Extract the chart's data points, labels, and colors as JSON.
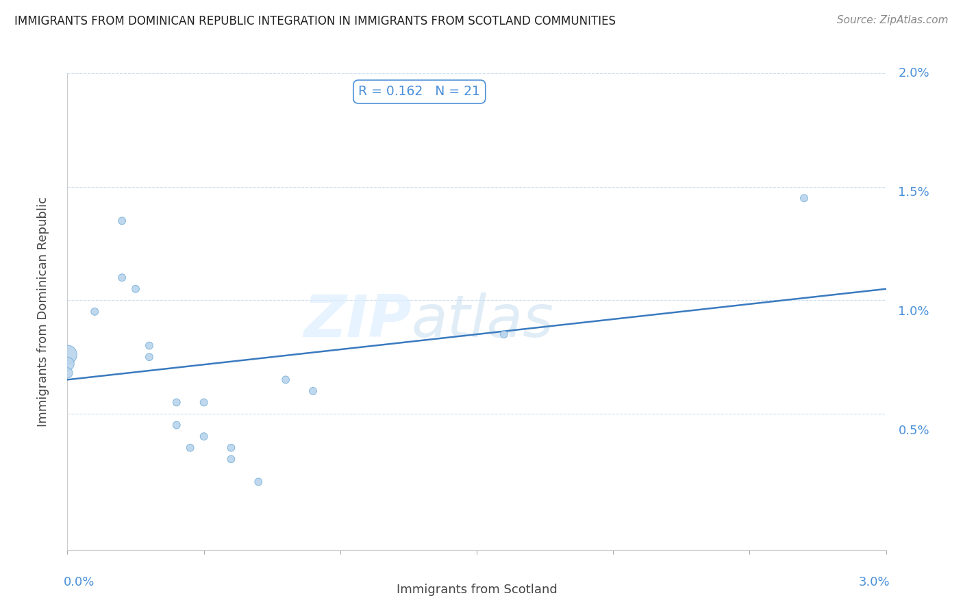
{
  "title": "IMMIGRANTS FROM DOMINICAN REPUBLIC INTEGRATION IN IMMIGRANTS FROM SCOTLAND COMMUNITIES",
  "source": "Source: ZipAtlas.com",
  "xlabel": "Immigrants from Scotland",
  "ylabel": "Immigrants from Dominican Republic",
  "R": 0.162,
  "N": 21,
  "xlim": [
    0.0,
    0.03
  ],
  "ylim": [
    -0.001,
    0.02
  ],
  "scatter_x": [
    0.0,
    0.0,
    0.0,
    0.001,
    0.002,
    0.002,
    0.0025,
    0.003,
    0.003,
    0.004,
    0.004,
    0.0045,
    0.005,
    0.005,
    0.006,
    0.006,
    0.007,
    0.008,
    0.009,
    0.016,
    0.027
  ],
  "scatter_y": [
    0.0076,
    0.0072,
    0.0068,
    0.0095,
    0.0135,
    0.011,
    0.0105,
    0.0075,
    0.008,
    0.0055,
    0.0045,
    0.0035,
    0.0055,
    0.004,
    0.0035,
    0.003,
    0.002,
    0.0065,
    0.006,
    0.0085,
    0.0145
  ],
  "scatter_sizes": [
    400,
    200,
    120,
    60,
    60,
    60,
    60,
    60,
    60,
    60,
    60,
    60,
    60,
    60,
    60,
    60,
    60,
    60,
    60,
    60,
    60
  ],
  "dot_color": "#b8d4ec",
  "dot_edge_color": "#7ab0d8",
  "line_color": "#3a7abf",
  "line_x": [
    0.0,
    0.03
  ],
  "line_y": [
    0.0065,
    0.0105
  ],
  "grid_color": "#ccddee",
  "grid_style": "--",
  "background_color": "#ffffff",
  "title_color": "#222222",
  "axis_label_color": "#444444",
  "axis_tick_color": "#4a90d9",
  "watermark_zip": "ZIP",
  "watermark_atlas": "atlas",
  "annotation_R_label": "R = ",
  "annotation_R_value": "0.162",
  "annotation_N_label": "N = ",
  "annotation_N_value": "21",
  "annotation_color": "#4a90d9",
  "annotation_border_color": "#4a90d9",
  "ytick_positions": [
    0.0,
    0.005,
    0.01,
    0.015,
    0.02
  ],
  "ytick_labels": [
    "",
    "0.5%",
    "1.0%",
    "1.5%",
    "2.0%"
  ],
  "xtick_positions": [
    0.0,
    0.005,
    0.01,
    0.015,
    0.02,
    0.025,
    0.03
  ],
  "xtick_left_label": "0.0%",
  "xtick_right_label": "3.0%"
}
